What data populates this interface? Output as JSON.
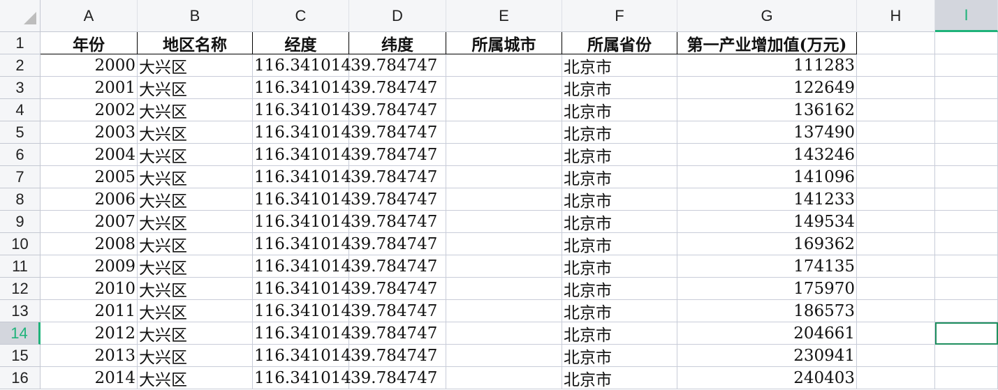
{
  "columns": [
    "A",
    "B",
    "C",
    "D",
    "E",
    "F",
    "G",
    "H",
    "I"
  ],
  "selected_cell": "I14",
  "accent_color": "#1fb37a",
  "header_row": [
    "年份",
    "地区名称",
    "经度",
    "纬度",
    "所属城市",
    "所属省份",
    "第一产业增加值(万元)"
  ],
  "rows": [
    [
      "2000",
      "大兴区",
      "116.341014",
      "39.784747",
      "",
      "北京市",
      "111283"
    ],
    [
      "2001",
      "大兴区",
      "116.341014",
      "39.784747",
      "",
      "北京市",
      "122649"
    ],
    [
      "2002",
      "大兴区",
      "116.341014",
      "39.784747",
      "",
      "北京市",
      "136162"
    ],
    [
      "2003",
      "大兴区",
      "116.341014",
      "39.784747",
      "",
      "北京市",
      "137490"
    ],
    [
      "2004",
      "大兴区",
      "116.341014",
      "39.784747",
      "",
      "北京市",
      "143246"
    ],
    [
      "2005",
      "大兴区",
      "116.341014",
      "39.784747",
      "",
      "北京市",
      "141096"
    ],
    [
      "2006",
      "大兴区",
      "116.341014",
      "39.784747",
      "",
      "北京市",
      "141233"
    ],
    [
      "2007",
      "大兴区",
      "116.341014",
      "39.784747",
      "",
      "北京市",
      "149534"
    ],
    [
      "2008",
      "大兴区",
      "116.341014",
      "39.784747",
      "",
      "北京市",
      "169362"
    ],
    [
      "2009",
      "大兴区",
      "116.341014",
      "39.784747",
      "",
      "北京市",
      "174135"
    ],
    [
      "2010",
      "大兴区",
      "116.341014",
      "39.784747",
      "",
      "北京市",
      "175970"
    ],
    [
      "2011",
      "大兴区",
      "116.341014",
      "39.784747",
      "",
      "北京市",
      "186573"
    ],
    [
      "2012",
      "大兴区",
      "116.341014",
      "39.784747",
      "",
      "北京市",
      "204661"
    ],
    [
      "2013",
      "大兴区",
      "116.341014",
      "39.784747",
      "",
      "北京市",
      "230941"
    ],
    [
      "2014",
      "大兴区",
      "116.341014",
      "39.784747",
      "",
      "北京市",
      "240403"
    ]
  ]
}
